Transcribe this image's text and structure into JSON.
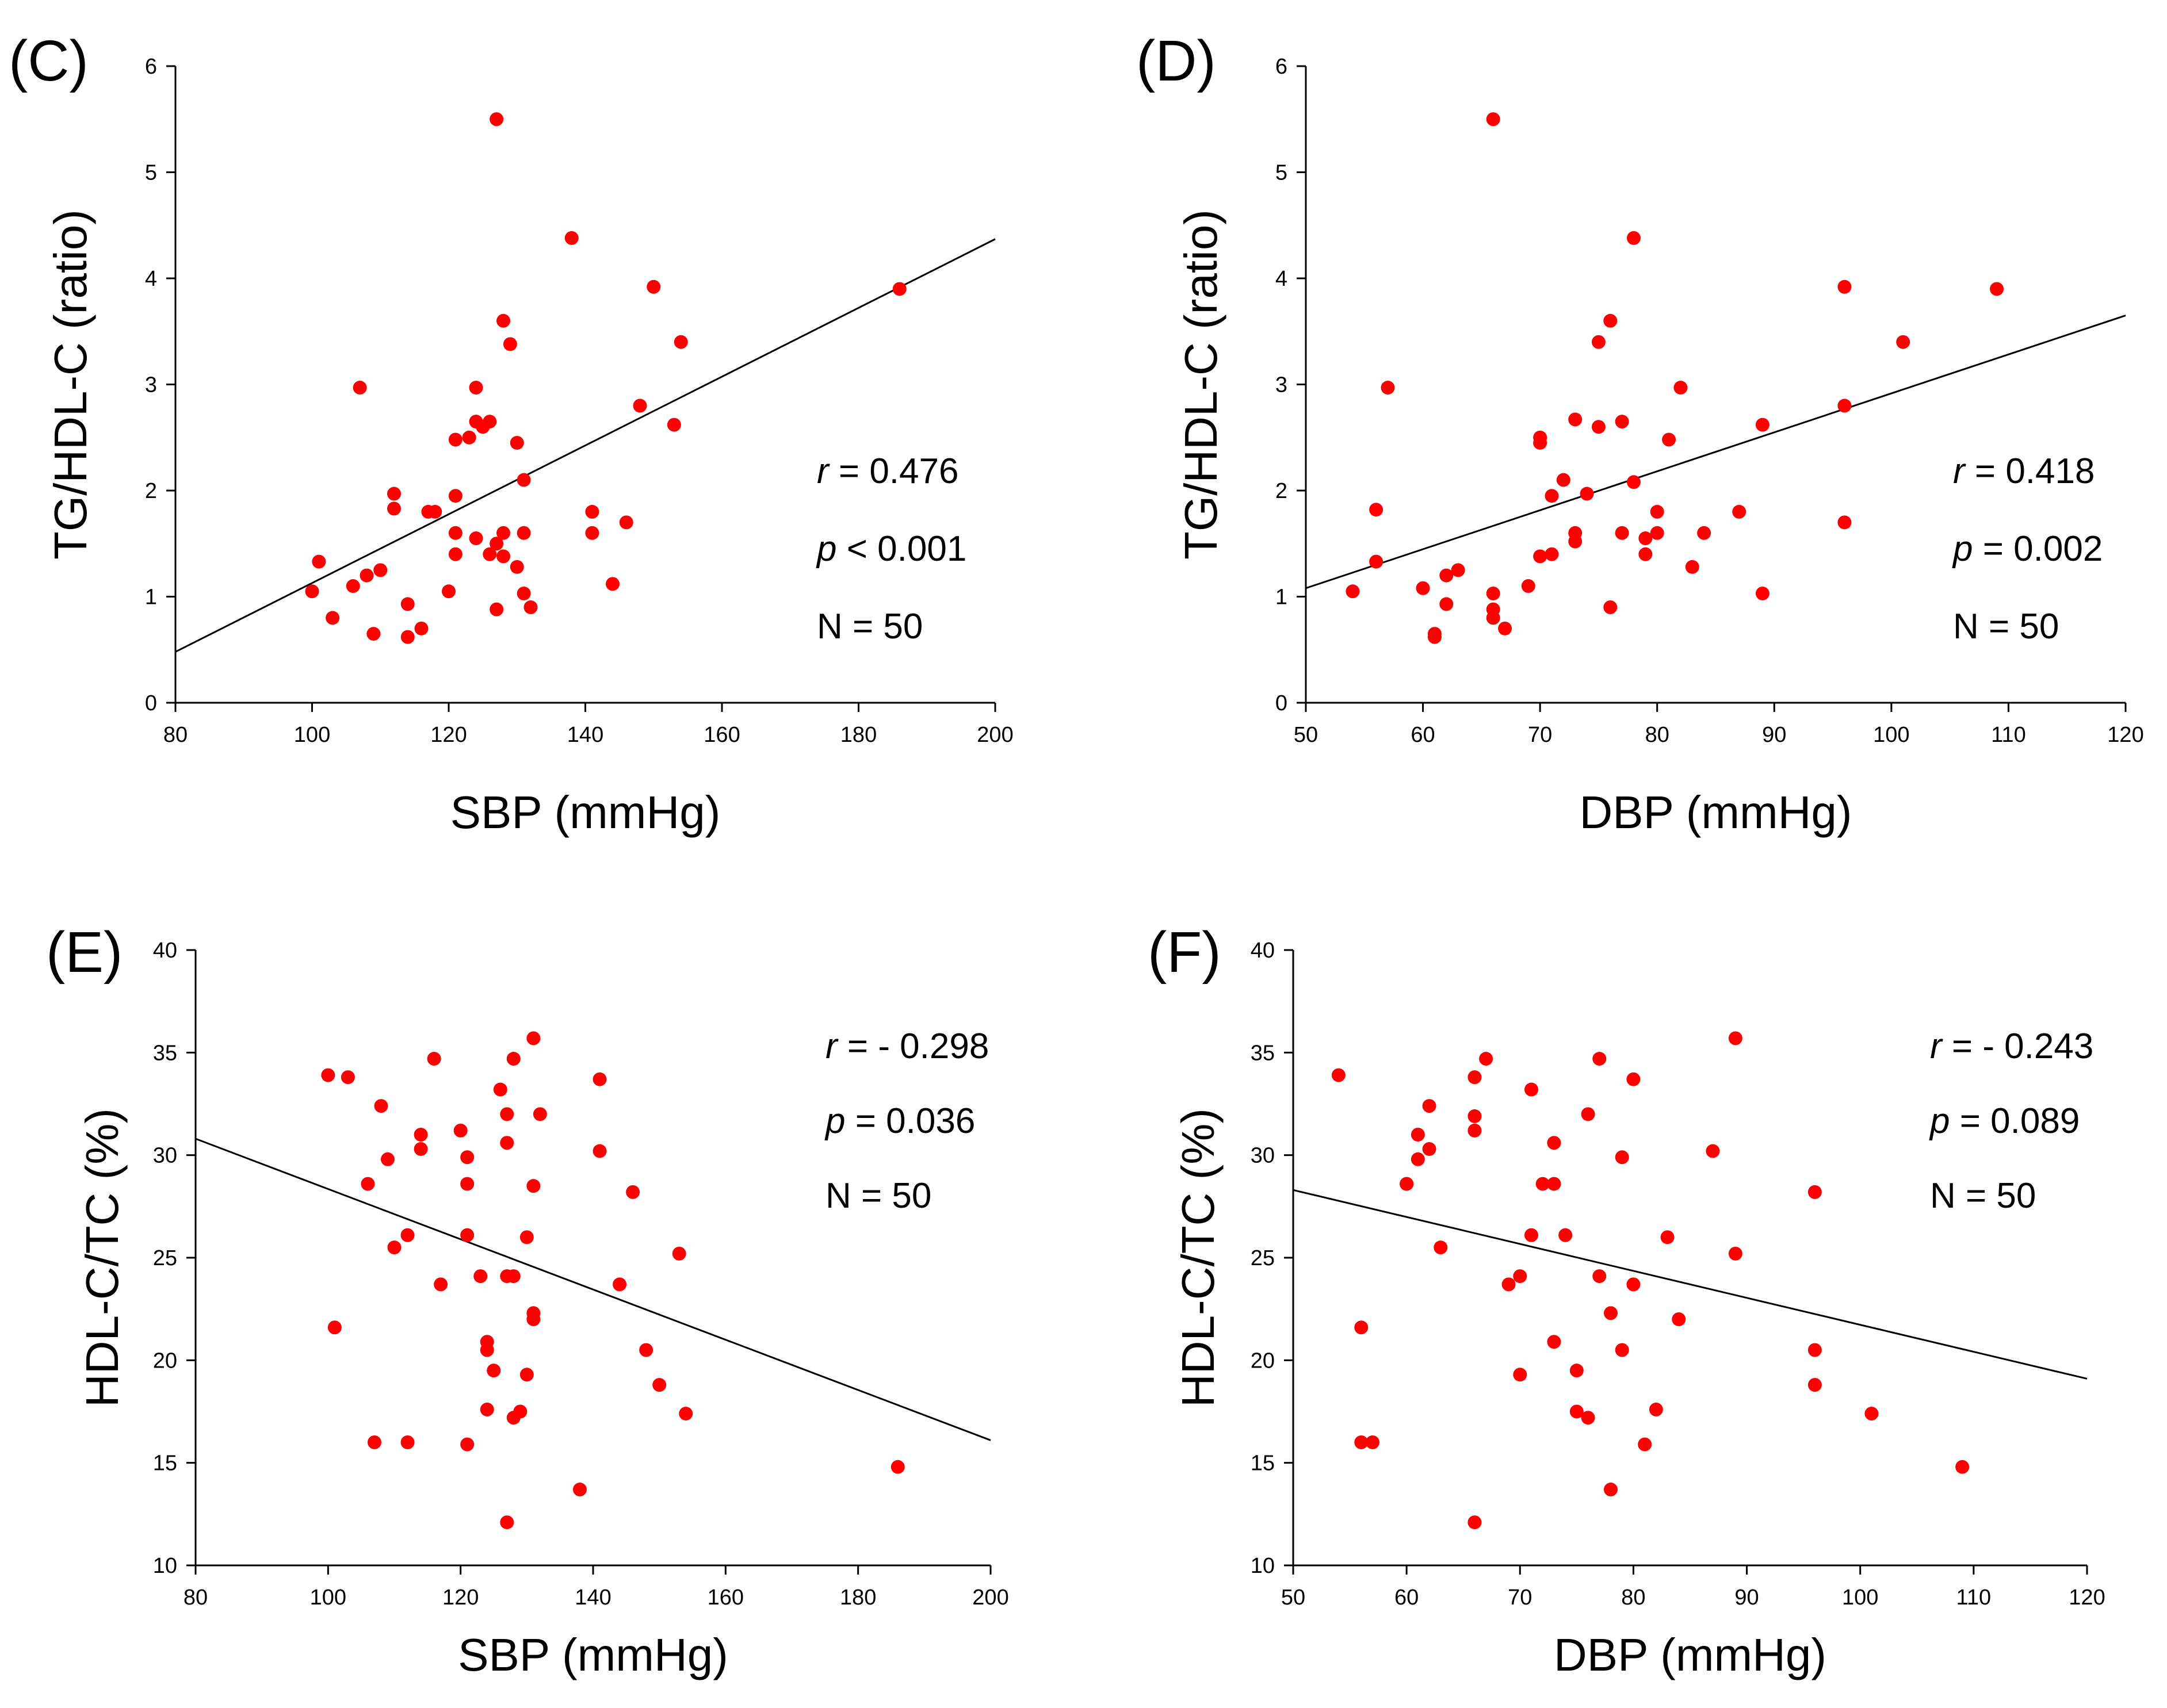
{
  "colors": {
    "points": "#ff0000",
    "line": "#000000",
    "axes": "#000000"
  },
  "chart_data": [
    {
      "type": "scatter",
      "panel_label": "(C)",
      "xlabel": "SBP (mmHg)",
      "ylabel": "TG/HDL-C (ratio)",
      "xlim": [
        80,
        200
      ],
      "ylim": [
        0,
        6
      ],
      "xticks": [
        80,
        100,
        120,
        140,
        160,
        180,
        200
      ],
      "yticks": [
        0,
        1,
        2,
        3,
        4,
        5,
        6
      ],
      "stats": {
        "r_label": "r",
        "r_value": "=   0.476",
        "p_label": "p",
        "p_value": "< 0.001",
        "n_text": "N = 50"
      },
      "fit_line": {
        "x": [
          80,
          200
        ],
        "y": [
          0.48,
          4.37
        ]
      },
      "points": [
        [
          100,
          1.05
        ],
        [
          101,
          1.33
        ],
        [
          103,
          0.8
        ],
        [
          106,
          1.1
        ],
        [
          107,
          2.97
        ],
        [
          108,
          1.2
        ],
        [
          109,
          0.65
        ],
        [
          110,
          1.25
        ],
        [
          112,
          1.97
        ],
        [
          112,
          1.83
        ],
        [
          114,
          0.93
        ],
        [
          114,
          0.62
        ],
        [
          116,
          0.7
        ],
        [
          117,
          1.8
        ],
        [
          120,
          1.05
        ],
        [
          121,
          2.48
        ],
        [
          121,
          1.95
        ],
        [
          121,
          1.6
        ],
        [
          121,
          1.4
        ],
        [
          123,
          2.5
        ],
        [
          124,
          2.97
        ],
        [
          124,
          2.65
        ],
        [
          124,
          1.55
        ],
        [
          125,
          2.6
        ],
        [
          126,
          2.65
        ],
        [
          126,
          1.4
        ],
        [
          127,
          5.5
        ],
        [
          127,
          1.5
        ],
        [
          127,
          0.88
        ],
        [
          128,
          3.6
        ],
        [
          128,
          1.6
        ],
        [
          128,
          1.38
        ],
        [
          129,
          3.38
        ],
        [
          130,
          2.45
        ],
        [
          130,
          1.28
        ],
        [
          131,
          2.1
        ],
        [
          131,
          1.6
        ],
        [
          131,
          1.03
        ],
        [
          132,
          0.9
        ],
        [
          138,
          4.38
        ],
        [
          141,
          1.8
        ],
        [
          141,
          1.6
        ],
        [
          144,
          1.12
        ],
        [
          146,
          1.7
        ],
        [
          148,
          2.8
        ],
        [
          150,
          3.92
        ],
        [
          153,
          2.62
        ],
        [
          154,
          3.4
        ],
        [
          186,
          3.9
        ],
        [
          118,
          1.8
        ]
      ]
    },
    {
      "type": "scatter",
      "panel_label": "(D)",
      "xlabel": "DBP (mmHg)",
      "ylabel": "TG/HDL-C (ratio)",
      "xlim": [
        50,
        120
      ],
      "ylim": [
        0,
        6
      ],
      "xticks": [
        50,
        60,
        70,
        80,
        90,
        100,
        110,
        120
      ],
      "yticks": [
        0,
        1,
        2,
        3,
        4,
        5,
        6
      ],
      "stats": {
        "r_label": "r",
        "r_value": "=  0.418",
        "p_label": "p",
        "p_value": "= 0.002",
        "n_text": "N = 50"
      },
      "fit_line": {
        "x": [
          50,
          120
        ],
        "y": [
          1.08,
          3.65
        ]
      },
      "points": [
        [
          54,
          1.05
        ],
        [
          56,
          1.82
        ],
        [
          56,
          1.33
        ],
        [
          57,
          2.97
        ],
        [
          60,
          1.08
        ],
        [
          61,
          0.65
        ],
        [
          61,
          0.62
        ],
        [
          62,
          1.2
        ],
        [
          62,
          0.93
        ],
        [
          63,
          1.25
        ],
        [
          66,
          5.5
        ],
        [
          66,
          1.03
        ],
        [
          66,
          0.88
        ],
        [
          66,
          0.8
        ],
        [
          67,
          0.7
        ],
        [
          69,
          1.1
        ],
        [
          70,
          2.5
        ],
        [
          70,
          2.45
        ],
        [
          70,
          1.38
        ],
        [
          71,
          1.95
        ],
        [
          71,
          1.4
        ],
        [
          72,
          2.1
        ],
        [
          73,
          2.67
        ],
        [
          73,
          1.6
        ],
        [
          73,
          1.52
        ],
        [
          74,
          1.97
        ],
        [
          75,
          3.4
        ],
        [
          75,
          2.6
        ],
        [
          76,
          3.6
        ],
        [
          76,
          0.9
        ],
        [
          77,
          2.65
        ],
        [
          77,
          1.6
        ],
        [
          78,
          4.38
        ],
        [
          78,
          2.08
        ],
        [
          79,
          1.55
        ],
        [
          79,
          1.4
        ],
        [
          80,
          1.8
        ],
        [
          80,
          1.6
        ],
        [
          81,
          2.48
        ],
        [
          82,
          2.97
        ],
        [
          83,
          1.28
        ],
        [
          84,
          1.6
        ],
        [
          87,
          1.8
        ],
        [
          89,
          2.62
        ],
        [
          89,
          1.03
        ],
        [
          96,
          3.92
        ],
        [
          96,
          2.8
        ],
        [
          96,
          1.7
        ],
        [
          101,
          3.4
        ],
        [
          109,
          3.9
        ]
      ]
    },
    {
      "type": "scatter",
      "panel_label": "(E)",
      "xlabel": "SBP (mmHg)",
      "ylabel": "HDL-C/TC (%)",
      "xlim": [
        80,
        200
      ],
      "ylim": [
        10,
        40
      ],
      "xticks": [
        80,
        100,
        120,
        140,
        160,
        180,
        200
      ],
      "yticks": [
        10,
        15,
        20,
        25,
        30,
        35,
        40
      ],
      "stats": {
        "r_label": "r",
        "r_value": "= -  0.298",
        "p_label": "p",
        "p_value": "= 0.036",
        "n_text": "N = 50"
      },
      "fit_line": {
        "x": [
          80,
          200
        ],
        "y": [
          30.8,
          16.1
        ]
      },
      "points": [
        [
          100,
          33.9
        ],
        [
          101,
          21.6
        ],
        [
          103,
          33.8
        ],
        [
          106,
          28.6
        ],
        [
          107,
          16.0
        ],
        [
          108,
          32.4
        ],
        [
          109,
          29.8
        ],
        [
          110,
          25.5
        ],
        [
          112,
          26.1
        ],
        [
          112,
          16.0
        ],
        [
          114,
          31.0
        ],
        [
          114,
          30.3
        ],
        [
          116,
          34.7
        ],
        [
          117,
          23.7
        ],
        [
          120,
          31.2
        ],
        [
          121,
          29.9
        ],
        [
          121,
          28.6
        ],
        [
          121,
          26.1
        ],
        [
          121,
          15.9
        ],
        [
          123,
          24.1
        ],
        [
          124,
          20.9
        ],
        [
          124,
          20.5
        ],
        [
          124,
          17.6
        ],
        [
          125,
          19.5
        ],
        [
          126,
          33.2
        ],
        [
          127,
          32.0
        ],
        [
          127,
          30.6
        ],
        [
          127,
          24.1
        ],
        [
          127,
          12.1
        ],
        [
          128,
          34.7
        ],
        [
          128,
          24.1
        ],
        [
          128,
          17.2
        ],
        [
          129,
          17.5
        ],
        [
          130,
          26.0
        ],
        [
          130,
          19.3
        ],
        [
          131,
          35.7
        ],
        [
          131,
          28.5
        ],
        [
          131,
          22.3
        ],
        [
          131,
          22.0
        ],
        [
          132,
          32.0
        ],
        [
          138,
          13.7
        ],
        [
          141,
          33.7
        ],
        [
          141,
          30.2
        ],
        [
          144,
          23.7
        ],
        [
          146,
          28.2
        ],
        [
          148,
          20.5
        ],
        [
          150,
          18.8
        ],
        [
          153,
          25.2
        ],
        [
          154,
          17.4
        ],
        [
          186,
          14.8
        ]
      ]
    },
    {
      "type": "scatter",
      "panel_label": "(F)",
      "xlabel": "DBP (mmHg)",
      "ylabel": "HDL-C/TC (%)",
      "xlim": [
        50,
        120
      ],
      "ylim": [
        10,
        40
      ],
      "xticks": [
        50,
        60,
        70,
        80,
        90,
        100,
        110,
        120
      ],
      "yticks": [
        10,
        15,
        20,
        25,
        30,
        35,
        40
      ],
      "stats": {
        "r_label": "r",
        "r_value": "=  - 0.243",
        "p_label": "p",
        "p_value": "= 0.089",
        "n_text": "N = 50"
      },
      "fit_line": {
        "x": [
          50,
          120
        ],
        "y": [
          28.3,
          19.1
        ]
      },
      "points": [
        [
          54,
          33.9
        ],
        [
          56,
          21.6
        ],
        [
          56,
          16.0
        ],
        [
          57,
          16.0
        ],
        [
          60,
          28.6
        ],
        [
          61,
          31.0
        ],
        [
          61,
          29.8
        ],
        [
          62,
          32.4
        ],
        [
          62,
          30.3
        ],
        [
          63,
          25.5
        ],
        [
          66,
          33.8
        ],
        [
          66,
          31.9
        ],
        [
          66,
          31.2
        ],
        [
          66,
          12.1
        ],
        [
          67,
          34.7
        ],
        [
          69,
          23.7
        ],
        [
          70,
          24.1
        ],
        [
          70,
          19.3
        ],
        [
          71,
          33.2
        ],
        [
          71,
          26.1
        ],
        [
          72,
          28.6
        ],
        [
          73,
          30.6
        ],
        [
          73,
          28.6
        ],
        [
          73,
          20.9
        ],
        [
          74,
          26.1
        ],
        [
          75,
          19.5
        ],
        [
          75,
          17.5
        ],
        [
          76,
          32.0
        ],
        [
          76,
          17.2
        ],
        [
          77,
          34.7
        ],
        [
          77,
          24.1
        ],
        [
          78,
          22.3
        ],
        [
          78,
          13.7
        ],
        [
          79,
          29.9
        ],
        [
          79,
          20.5
        ],
        [
          80,
          33.7
        ],
        [
          80,
          23.7
        ],
        [
          81,
          15.9
        ],
        [
          82,
          17.6
        ],
        [
          83,
          26.0
        ],
        [
          84,
          22.0
        ],
        [
          87,
          30.2
        ],
        [
          89,
          35.7
        ],
        [
          89,
          25.2
        ],
        [
          96,
          28.2
        ],
        [
          96,
          20.5
        ],
        [
          96,
          18.8
        ],
        [
          101,
          17.4
        ],
        [
          109,
          14.8
        ],
        [
          60,
          28.6
        ]
      ]
    }
  ]
}
